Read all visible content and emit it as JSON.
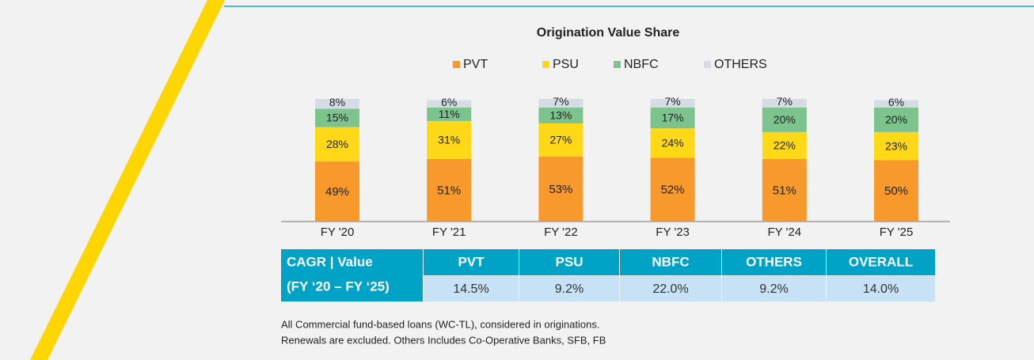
{
  "chart_data": {
    "type": "stacked_bar",
    "title": "Origination Value Share",
    "categories": [
      "FY '20",
      "FY '21",
      "FY '22",
      "FY '23",
      "FY '24",
      "FY '25"
    ],
    "series": [
      {
        "name": "PVT",
        "color": "#f7992b",
        "values": [
          49,
          51,
          53,
          52,
          51,
          50
        ],
        "value_labels": [
          "49%",
          "51%",
          "53%",
          "52%",
          "51%",
          "50%"
        ]
      },
      {
        "name": "PSU",
        "color": "#ffd817",
        "values": [
          28,
          31,
          27,
          24,
          22,
          23
        ],
        "value_labels": [
          "28%",
          "31%",
          "27%",
          "24%",
          "22%",
          "23%"
        ]
      },
      {
        "name": "NBFC",
        "color": "#7dc38e",
        "values": [
          15,
          11,
          13,
          17,
          20,
          20
        ],
        "value_labels": [
          "15%",
          "11%",
          "13%",
          "17%",
          "20%",
          "20%"
        ]
      },
      {
        "name": "OTHERS",
        "color": "#d5dce6",
        "values": [
          8,
          6,
          7,
          7,
          7,
          6
        ],
        "value_labels": [
          "8%",
          "6%",
          "7%",
          "7%",
          "7%",
          "6%"
        ]
      }
    ]
  },
  "table": {
    "header": [
      "CAGR | Value",
      "(FY ‘20 – FY ‘25)"
    ],
    "columns": [
      "PVT",
      "PSU",
      "NBFC",
      "OTHERS",
      "OVERALL"
    ],
    "values": [
      "14.5%",
      "9.2%",
      "22.0%",
      "9.2%",
      "14.0%"
    ]
  },
  "notes": [
    "All Commercial fund-based loans (WC-TL), considered in originations.",
    "Renewals are excluded. Others Includes Co-Operative Banks, SFB, FB"
  ]
}
